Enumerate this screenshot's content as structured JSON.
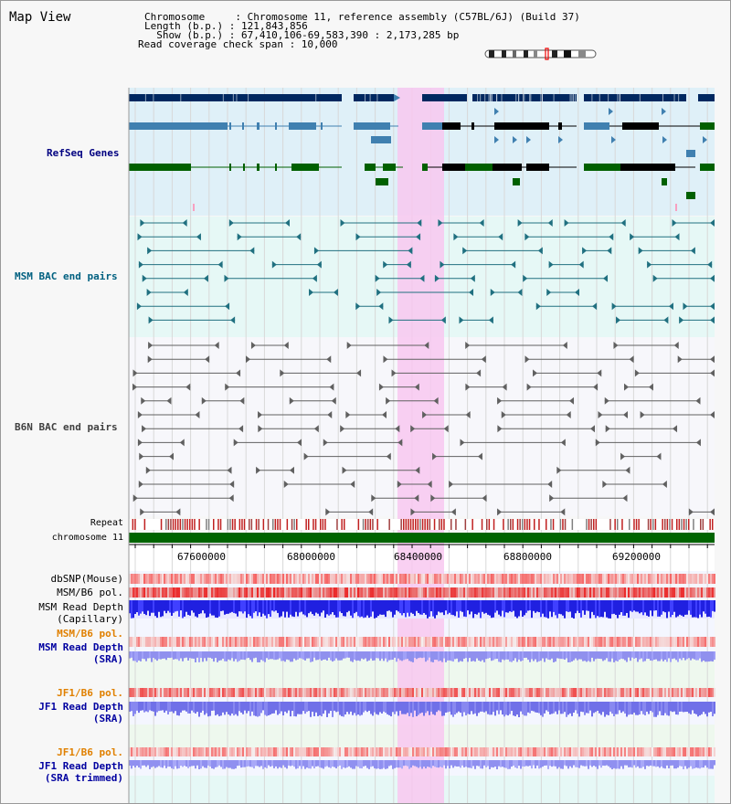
{
  "title": "Map View",
  "header": {
    "line1": "Chromosome     : Chromosome 11, reference assembly (C57BL/6J) (Build 37)",
    "line2": "Length (b.p.) : 121,843,856",
    "line3": "  Show (b.p.) : 67,410,106-69,583,390 : 2,173,285 bp",
    "line4": "Read coverage check span : 10,000"
  },
  "tracks": {
    "refseq": "RefSeq Genes",
    "msm_bac": "MSM BAC end pairs",
    "b6n_bac": "B6N BAC end pairs",
    "repeat": "Repeat",
    "chromosome": "chromosome 11",
    "dbsnp": "dbSNP(Mouse)",
    "msm_pol": "MSM/B6 pol.",
    "msm_depth_cap_1": "MSM Read Depth",
    "msm_depth_cap_2": "(Capillary)",
    "msm_pol_sra": "MSM/B6 pol.",
    "msm_depth_sra_1": "MSM Read Depth",
    "msm_depth_sra_2": "(SRA)",
    "jf1_pol": "JF1/B6 pol.",
    "jf1_depth_1": "JF1 Read Depth",
    "jf1_depth_2": "(SRA)",
    "jf1_pol_trim": "JF1/B6 pol.",
    "jf1_trim_1": "JF1 Read Depth",
    "jf1_trim_2": "(SRA trimmed)"
  },
  "axis": {
    "ticks": [
      "67600000",
      "68000000",
      "68400000",
      "68800000",
      "69200000"
    ]
  },
  "colors": {
    "refseq_label": "#000080",
    "msm_label": "#006080",
    "b6n_label": "#404040",
    "orange": "#e08000",
    "blue": "#0000a0",
    "highlight": "#f8c8f0"
  }
}
